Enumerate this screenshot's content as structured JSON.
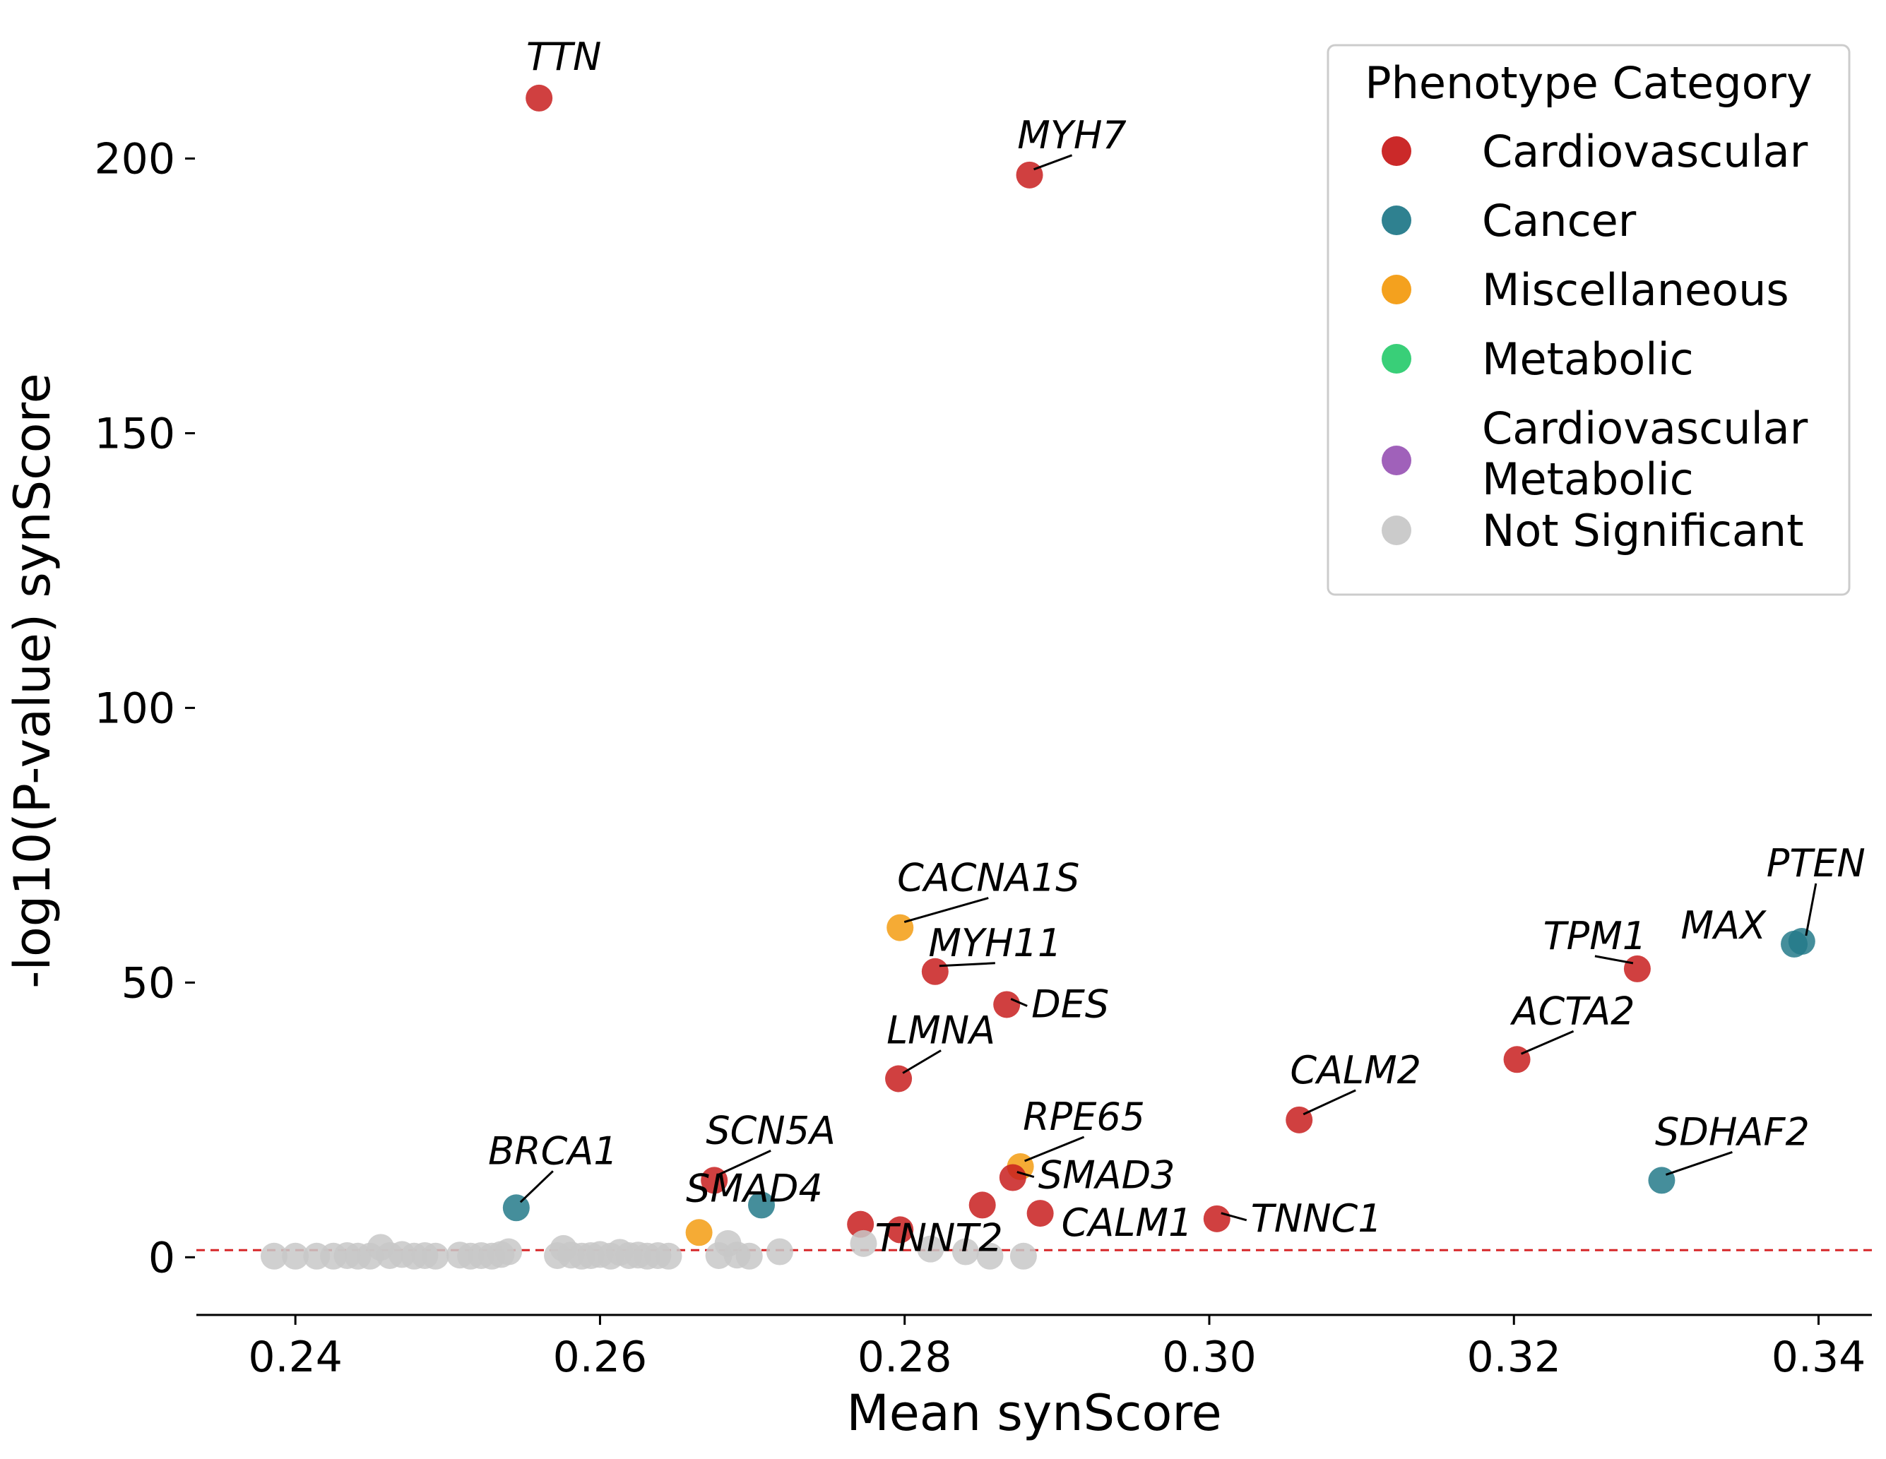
{
  "chart_data": {
    "type": "scatter",
    "xlabel": "Mean synScore",
    "ylabel": "-log10(P-value) synScore",
    "xlim": [
      0.2335,
      0.3435
    ],
    "ylim": [
      -10.5,
      225
    ],
    "xticks": [
      {
        "value": 0.24,
        "label": "0.24"
      },
      {
        "value": 0.26,
        "label": "0.26"
      },
      {
        "value": 0.28,
        "label": "0.28"
      },
      {
        "value": 0.3,
        "label": "0.30"
      },
      {
        "value": 0.32,
        "label": "0.32"
      },
      {
        "value": 0.34,
        "label": "0.34"
      }
    ],
    "yticks": [
      {
        "value": 0,
        "label": "0"
      },
      {
        "value": 50,
        "label": "50"
      },
      {
        "value": 100,
        "label": "100"
      },
      {
        "value": 150,
        "label": "150"
      },
      {
        "value": 200,
        "label": "200"
      }
    ],
    "threshold": {
      "y": 1.3,
      "color": "#d62728",
      "style": "dashed"
    },
    "grid": false,
    "legend": {
      "title": "Phenotype Category",
      "placement": "top-right",
      "entries": [
        {
          "label": "Cardiovascular",
          "color": "#c81e1e"
        },
        {
          "label": "Cancer",
          "color": "#247a8a"
        },
        {
          "label": "Miscellaneous",
          "color": "#f39c12"
        },
        {
          "label": "Metabolic",
          "color": "#2ecc71"
        },
        {
          "label": "Cardiovascular\nMetabolic",
          "color": "#9b59b6"
        },
        {
          "label": "Not Significant",
          "color": "#c8c8c8"
        }
      ]
    },
    "categories": {
      "Cardiovascular": "#c81e1e",
      "Cancer": "#247a8a",
      "Miscellaneous": "#f39c12",
      "Metabolic": "#2ecc71",
      "Cardiovascular Metabolic": "#9b59b6",
      "Not Significant": "#c8c8c8"
    },
    "labeled_points": [
      {
        "gene": "TTN",
        "x": 0.256,
        "y": 211,
        "category": "Cardiovascular"
      },
      {
        "gene": "MYH7",
        "x": 0.2882,
        "y": 197,
        "category": "Cardiovascular"
      },
      {
        "gene": "CACNA1S",
        "x": 0.2797,
        "y": 60,
        "category": "Miscellaneous"
      },
      {
        "gene": "MYH11",
        "x": 0.282,
        "y": 52,
        "category": "Cardiovascular"
      },
      {
        "gene": "DES",
        "x": 0.2867,
        "y": 46,
        "category": "Cardiovascular"
      },
      {
        "gene": "LMNA",
        "x": 0.2796,
        "y": 32.5,
        "category": "Cardiovascular"
      },
      {
        "gene": "RPE65",
        "x": 0.2876,
        "y": 16.5,
        "category": "Miscellaneous"
      },
      {
        "gene": "SMAD3",
        "x": 0.2871,
        "y": 14.5,
        "category": "Cardiovascular"
      },
      {
        "gene": "CALM1",
        "x": 0.2889,
        "y": 8,
        "category": "Cardiovascular"
      },
      {
        "gene": "TNNT2",
        "x": 0.2797,
        "y": 5,
        "category": "Cardiovascular"
      },
      {
        "gene": "SCN5A",
        "x": 0.2675,
        "y": 14,
        "category": "Cardiovascular"
      },
      {
        "gene": "SMAD4",
        "x": 0.2706,
        "y": 9.5,
        "category": "Cancer"
      },
      {
        "gene": "BRCA1",
        "x": 0.2545,
        "y": 9,
        "category": "Cancer"
      },
      {
        "gene": "CALM2",
        "x": 0.3059,
        "y": 25,
        "category": "Cardiovascular"
      },
      {
        "gene": "TNNC1",
        "x": 0.3005,
        "y": 7,
        "category": "Cardiovascular"
      },
      {
        "gene": "ACTA2",
        "x": 0.3202,
        "y": 36,
        "category": "Cardiovascular"
      },
      {
        "gene": "TPM1",
        "x": 0.3281,
        "y": 52.5,
        "category": "Cardiovascular"
      },
      {
        "gene": "MAX",
        "x": 0.3384,
        "y": 57,
        "category": "Cancer"
      },
      {
        "gene": "PTEN",
        "x": 0.3389,
        "y": 57.5,
        "category": "Cancer"
      },
      {
        "gene": "SDHAF2",
        "x": 0.3297,
        "y": 14,
        "category": "Cancer"
      }
    ],
    "unlabeled_points": [
      {
        "x": 0.2665,
        "y": 4.5,
        "category": "Miscellaneous"
      },
      {
        "x": 0.2771,
        "y": 6,
        "category": "Cardiovascular"
      },
      {
        "x": 0.2851,
        "y": 9.5,
        "category": "Cardiovascular"
      },
      {
        "x": 0.2386,
        "y": 0.2,
        "category": "Not Significant"
      },
      {
        "x": 0.24,
        "y": 0.2,
        "category": "Not Significant"
      },
      {
        "x": 0.2414,
        "y": 0.2,
        "category": "Not Significant"
      },
      {
        "x": 0.2425,
        "y": 0.2,
        "category": "Not Significant"
      },
      {
        "x": 0.2434,
        "y": 0.3,
        "category": "Not Significant"
      },
      {
        "x": 0.2441,
        "y": 0.2,
        "category": "Not Significant"
      },
      {
        "x": 0.2449,
        "y": 0.2,
        "category": "Not Significant"
      },
      {
        "x": 0.2456,
        "y": 1.8,
        "category": "Not Significant"
      },
      {
        "x": 0.2462,
        "y": 0.3,
        "category": "Not Significant"
      },
      {
        "x": 0.247,
        "y": 0.5,
        "category": "Not Significant"
      },
      {
        "x": 0.2478,
        "y": 0.2,
        "category": "Not Significant"
      },
      {
        "x": 0.2485,
        "y": 0.3,
        "category": "Not Significant"
      },
      {
        "x": 0.2492,
        "y": 0.2,
        "category": "Not Significant"
      },
      {
        "x": 0.2508,
        "y": 0.4,
        "category": "Not Significant"
      },
      {
        "x": 0.2515,
        "y": 0.2,
        "category": "Not Significant"
      },
      {
        "x": 0.2522,
        "y": 0.3,
        "category": "Not Significant"
      },
      {
        "x": 0.2529,
        "y": 0.2,
        "category": "Not Significant"
      },
      {
        "x": 0.2535,
        "y": 0.5,
        "category": "Not Significant"
      },
      {
        "x": 0.254,
        "y": 1.0,
        "category": "Not Significant"
      },
      {
        "x": 0.2572,
        "y": 0.3,
        "category": "Not Significant"
      },
      {
        "x": 0.2576,
        "y": 1.6,
        "category": "Not Significant"
      },
      {
        "x": 0.2581,
        "y": 0.4,
        "category": "Not Significant"
      },
      {
        "x": 0.2588,
        "y": 0.2,
        "category": "Not Significant"
      },
      {
        "x": 0.2594,
        "y": 0.3,
        "category": "Not Significant"
      },
      {
        "x": 0.26,
        "y": 0.5,
        "category": "Not Significant"
      },
      {
        "x": 0.2607,
        "y": 0.2,
        "category": "Not Significant"
      },
      {
        "x": 0.2613,
        "y": 0.9,
        "category": "Not Significant"
      },
      {
        "x": 0.2619,
        "y": 0.3,
        "category": "Not Significant"
      },
      {
        "x": 0.2625,
        "y": 0.4,
        "category": "Not Significant"
      },
      {
        "x": 0.2631,
        "y": 0.2,
        "category": "Not Significant"
      },
      {
        "x": 0.2638,
        "y": 0.3,
        "category": "Not Significant"
      },
      {
        "x": 0.2645,
        "y": 0.2,
        "category": "Not Significant"
      },
      {
        "x": 0.2678,
        "y": 0.3,
        "category": "Not Significant"
      },
      {
        "x": 0.2684,
        "y": 2.5,
        "category": "Not Significant"
      },
      {
        "x": 0.269,
        "y": 0.4,
        "category": "Not Significant"
      },
      {
        "x": 0.2698,
        "y": 0.2,
        "category": "Not Significant"
      },
      {
        "x": 0.2718,
        "y": 1.0,
        "category": "Not Significant"
      },
      {
        "x": 0.2773,
        "y": 2.5,
        "category": "Not Significant"
      },
      {
        "x": 0.2817,
        "y": 1.5,
        "category": "Not Significant"
      },
      {
        "x": 0.284,
        "y": 1.0,
        "category": "Not Significant"
      },
      {
        "x": 0.2856,
        "y": 0.2,
        "category": "Not Significant"
      },
      {
        "x": 0.2878,
        "y": 0.2,
        "category": "Not Significant"
      }
    ]
  }
}
